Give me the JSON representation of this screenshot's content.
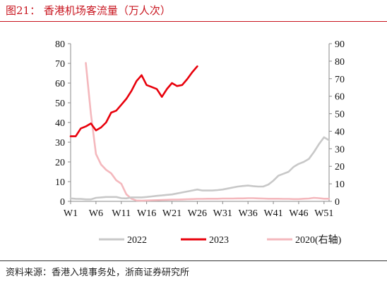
{
  "title": "图21：  香港机场客流量（万人次）",
  "source": "资料来源：香港入境事务处，浙商证券研究所",
  "chart_data": {
    "type": "line",
    "title": "香港机场客流量（万人次）",
    "x_categories": [
      "W1",
      "W6",
      "W11",
      "W16",
      "W21",
      "W26",
      "W31",
      "W36",
      "W41",
      "W46",
      "W51"
    ],
    "x_range": [
      1,
      52
    ],
    "y_left": {
      "min": 0,
      "max": 80,
      "step": 10
    },
    "y_right": {
      "min": 0,
      "max": 90,
      "step": 10
    },
    "grid": false,
    "legend_position": "bottom",
    "series": [
      {
        "name": "2022",
        "axis": "left",
        "color": "#c8c8c8",
        "points": [
          [
            1,
            1.5
          ],
          [
            2,
            1.3
          ],
          [
            3,
            1.2
          ],
          [
            4,
            1.0
          ],
          [
            5,
            1.0
          ],
          [
            6,
            1.8
          ],
          [
            7,
            2.0
          ],
          [
            8,
            2.2
          ],
          [
            9,
            2.2
          ],
          [
            10,
            2.2
          ],
          [
            11,
            1.6
          ],
          [
            12,
            1.5
          ],
          [
            13,
            2.0
          ],
          [
            14,
            2.0
          ],
          [
            15,
            2.0
          ],
          [
            16,
            2.2
          ],
          [
            17,
            2.5
          ],
          [
            18,
            2.8
          ],
          [
            19,
            3.0
          ],
          [
            20,
            3.3
          ],
          [
            21,
            3.5
          ],
          [
            22,
            4.0
          ],
          [
            23,
            4.5
          ],
          [
            24,
            5.0
          ],
          [
            25,
            5.5
          ],
          [
            26,
            6.0
          ],
          [
            27,
            5.5
          ],
          [
            28,
            5.5
          ],
          [
            29,
            5.5
          ],
          [
            30,
            5.7
          ],
          [
            31,
            6.0
          ],
          [
            32,
            6.5
          ],
          [
            33,
            7.0
          ],
          [
            34,
            7.5
          ],
          [
            35,
            7.8
          ],
          [
            36,
            8.0
          ],
          [
            37,
            7.7
          ],
          [
            38,
            7.5
          ],
          [
            39,
            7.5
          ],
          [
            40,
            8.5
          ],
          [
            41,
            10.5
          ],
          [
            42,
            13.0
          ],
          [
            43,
            14.0
          ],
          [
            44,
            15.0
          ],
          [
            45,
            17.5
          ],
          [
            46,
            19.0
          ],
          [
            47,
            20.0
          ],
          [
            48,
            21.5
          ],
          [
            49,
            25.0
          ],
          [
            50,
            29.0
          ],
          [
            51,
            32.5
          ],
          [
            52,
            31.0
          ]
        ]
      },
      {
        "name": "2023",
        "axis": "left",
        "color": "#e8000b",
        "points": [
          [
            1,
            33
          ],
          [
            2,
            33
          ],
          [
            3,
            37
          ],
          [
            4,
            38
          ],
          [
            5,
            39.5
          ],
          [
            6,
            36
          ],
          [
            7,
            37.5
          ],
          [
            8,
            40
          ],
          [
            9,
            45
          ],
          [
            10,
            46
          ],
          [
            11,
            49
          ],
          [
            12,
            52
          ],
          [
            13,
            56
          ],
          [
            14,
            61
          ],
          [
            15,
            64
          ],
          [
            16,
            59
          ],
          [
            17,
            58
          ],
          [
            18,
            57
          ],
          [
            19,
            53
          ],
          [
            20,
            57
          ],
          [
            21,
            60
          ],
          [
            22,
            58.5
          ],
          [
            23,
            59
          ],
          [
            24,
            62
          ],
          [
            25,
            65.5
          ],
          [
            26,
            68.5
          ]
        ]
      },
      {
        "name": "2020(右轴)",
        "axis": "right",
        "color": "#f4b8bd",
        "points": [
          [
            4,
            79
          ],
          [
            5,
            50
          ],
          [
            6,
            27
          ],
          [
            7,
            21
          ],
          [
            8,
            18
          ],
          [
            9,
            16
          ],
          [
            10,
            12
          ],
          [
            11,
            10
          ],
          [
            12,
            4
          ],
          [
            13,
            1.5
          ],
          [
            14,
            0.5
          ],
          [
            15,
            0.4
          ],
          [
            16,
            0.5
          ],
          [
            17,
            0.6
          ],
          [
            18,
            0.7
          ],
          [
            19,
            0.8
          ],
          [
            20,
            0.9
          ],
          [
            21,
            1.0
          ],
          [
            22,
            1.0
          ],
          [
            23,
            1.1
          ],
          [
            24,
            1.2
          ],
          [
            25,
            1.3
          ],
          [
            26,
            1.4
          ],
          [
            27,
            1.4
          ],
          [
            28,
            1.5
          ],
          [
            29,
            1.5
          ],
          [
            30,
            1.5
          ],
          [
            31,
            1.6
          ],
          [
            32,
            1.6
          ],
          [
            33,
            1.6
          ],
          [
            34,
            1.7
          ],
          [
            35,
            1.7
          ],
          [
            36,
            1.8
          ],
          [
            37,
            1.8
          ],
          [
            38,
            1.7
          ],
          [
            39,
            1.6
          ],
          [
            40,
            1.5
          ],
          [
            41,
            1.5
          ],
          [
            42,
            1.5
          ],
          [
            43,
            1.4
          ],
          [
            44,
            1.4
          ],
          [
            45,
            1.3
          ],
          [
            46,
            1.3
          ],
          [
            47,
            1.5
          ],
          [
            48,
            1.6
          ],
          [
            49,
            2.0
          ],
          [
            50,
            1.8
          ],
          [
            51,
            1.5
          ],
          [
            52,
            1.5
          ]
        ]
      }
    ]
  }
}
